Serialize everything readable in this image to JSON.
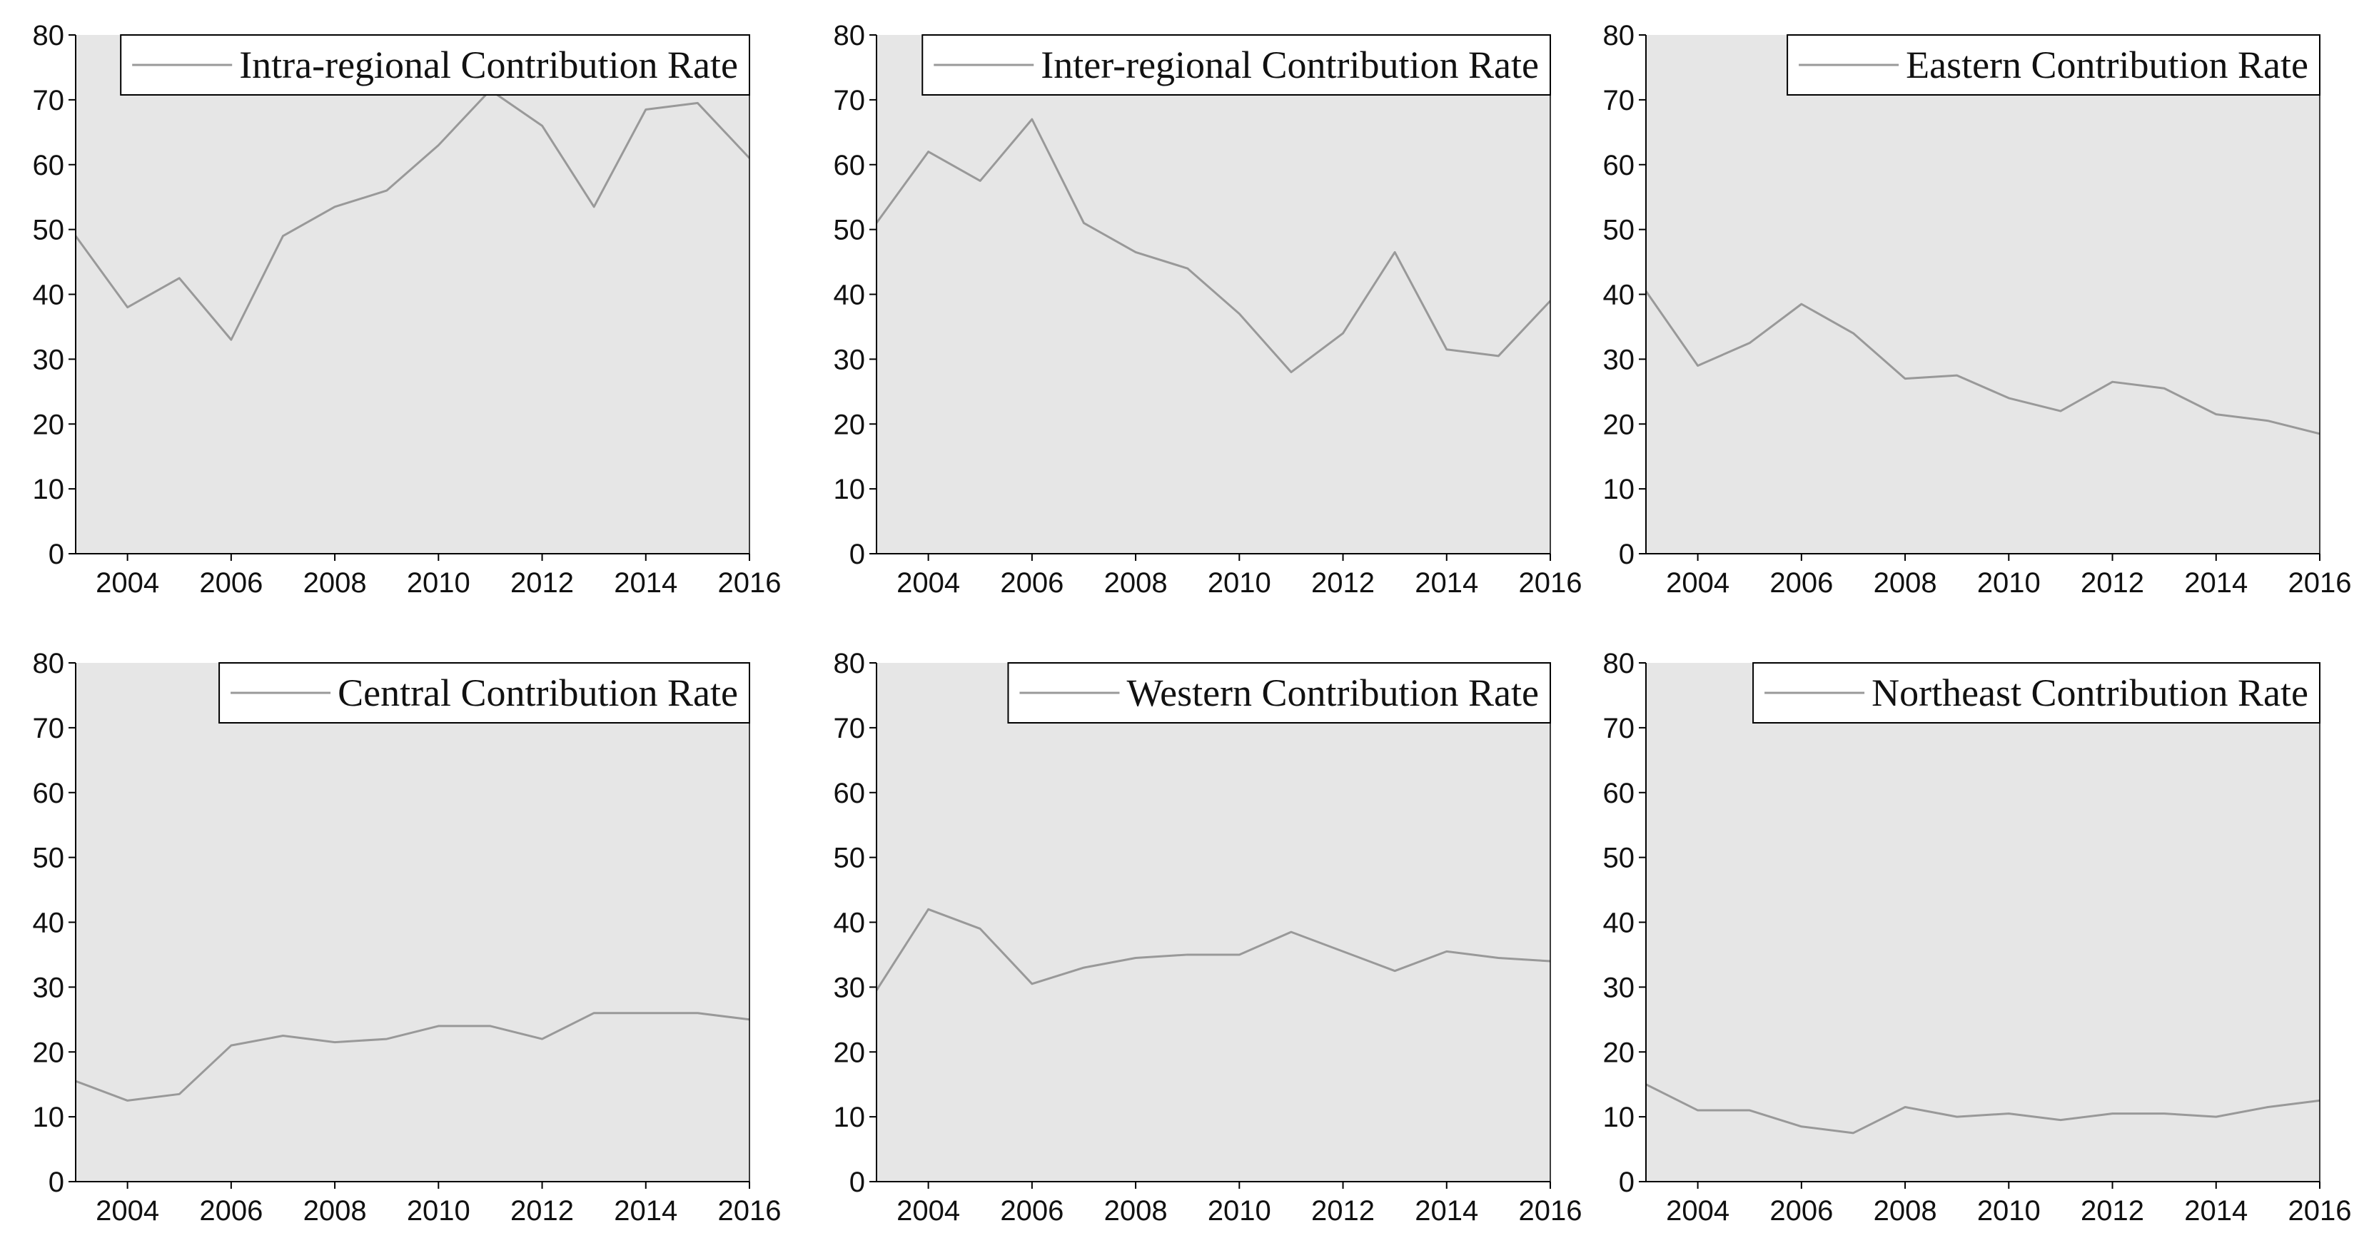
{
  "chart_data": [
    {
      "type": "line",
      "x": [
        2003,
        2004,
        2005,
        2006,
        2007,
        2008,
        2009,
        2010,
        2011,
        2012,
        2013,
        2014,
        2015,
        2016
      ],
      "series": [
        {
          "name": "Intra-regional Contribution Rate",
          "color": "#999999",
          "values": [
            49,
            38,
            42.5,
            33,
            49,
            53.5,
            56,
            63,
            71.5,
            66,
            53.5,
            68.5,
            69.5,
            61
          ]
        }
      ],
      "xlim": [
        2003,
        2016
      ],
      "xticks": [
        2004,
        2006,
        2008,
        2010,
        2012,
        2014,
        2016
      ],
      "ylim": [
        0,
        80
      ],
      "yticks": [
        0,
        10,
        20,
        30,
        40,
        50,
        60,
        70,
        80
      ],
      "legend": "upper right",
      "background": "#e6e6e6"
    },
    {
      "type": "line",
      "x": [
        2003,
        2004,
        2005,
        2006,
        2007,
        2008,
        2009,
        2010,
        2011,
        2012,
        2013,
        2014,
        2015,
        2016
      ],
      "series": [
        {
          "name": "Inter-regional Contribution Rate",
          "color": "#999999",
          "values": [
            51,
            62,
            57.5,
            67,
            51,
            46.5,
            44,
            37,
            28,
            34,
            46.5,
            31.5,
            30.5,
            39
          ]
        }
      ],
      "xlim": [
        2003,
        2016
      ],
      "xticks": [
        2004,
        2006,
        2008,
        2010,
        2012,
        2014,
        2016
      ],
      "ylim": [
        0,
        80
      ],
      "yticks": [
        0,
        10,
        20,
        30,
        40,
        50,
        60,
        70,
        80
      ],
      "legend": "upper right",
      "background": "#e6e6e6"
    },
    {
      "type": "line",
      "x": [
        2003,
        2004,
        2005,
        2006,
        2007,
        2008,
        2009,
        2010,
        2011,
        2012,
        2013,
        2014,
        2015,
        2016
      ],
      "series": [
        {
          "name": "Eastern Contribution Rate",
          "color": "#999999",
          "values": [
            40.5,
            29,
            32.5,
            38.5,
            34,
            27,
            27.5,
            24,
            22,
            26.5,
            25.5,
            21.5,
            20.5,
            18.5
          ]
        }
      ],
      "xlim": [
        2003,
        2016
      ],
      "xticks": [
        2004,
        2006,
        2008,
        2010,
        2012,
        2014,
        2016
      ],
      "ylim": [
        0,
        80
      ],
      "yticks": [
        0,
        10,
        20,
        30,
        40,
        50,
        60,
        70,
        80
      ],
      "legend": "upper right",
      "background": "#e6e6e6"
    },
    {
      "type": "line",
      "x": [
        2003,
        2004,
        2005,
        2006,
        2007,
        2008,
        2009,
        2010,
        2011,
        2012,
        2013,
        2014,
        2015,
        2016
      ],
      "series": [
        {
          "name": "Central Contribution Rate",
          "color": "#999999",
          "values": [
            15.5,
            12.5,
            13.5,
            21,
            22.5,
            21.5,
            22,
            24,
            24,
            22,
            26,
            26,
            26,
            25
          ]
        }
      ],
      "xlim": [
        2003,
        2016
      ],
      "xticks": [
        2004,
        2006,
        2008,
        2010,
        2012,
        2014,
        2016
      ],
      "ylim": [
        0,
        80
      ],
      "yticks": [
        0,
        10,
        20,
        30,
        40,
        50,
        60,
        70,
        80
      ],
      "legend": "upper right",
      "background": "#e6e6e6"
    },
    {
      "type": "line",
      "x": [
        2003,
        2004,
        2005,
        2006,
        2007,
        2008,
        2009,
        2010,
        2011,
        2012,
        2013,
        2014,
        2015,
        2016
      ],
      "series": [
        {
          "name": "Western Contribution Rate",
          "color": "#999999",
          "values": [
            29.5,
            42,
            39,
            30.5,
            33,
            34.5,
            35,
            35,
            38.5,
            35.5,
            32.5,
            35.5,
            34.5,
            34
          ]
        }
      ],
      "xlim": [
        2003,
        2016
      ],
      "xticks": [
        2004,
        2006,
        2008,
        2010,
        2012,
        2014,
        2016
      ],
      "ylim": [
        0,
        80
      ],
      "yticks": [
        0,
        10,
        20,
        30,
        40,
        50,
        60,
        70,
        80
      ],
      "legend": "upper right",
      "background": "#e6e6e6"
    },
    {
      "type": "line",
      "x": [
        2003,
        2004,
        2005,
        2006,
        2007,
        2008,
        2009,
        2010,
        2011,
        2012,
        2013,
        2014,
        2015,
        2016
      ],
      "series": [
        {
          "name": "Northeast Contribution Rate",
          "color": "#999999",
          "values": [
            15,
            11,
            11,
            8.5,
            7.5,
            11.5,
            10,
            10.5,
            9.5,
            10.5,
            10.5,
            10,
            11.5,
            12.5
          ]
        }
      ],
      "xlim": [
        2003,
        2016
      ],
      "xticks": [
        2004,
        2006,
        2008,
        2010,
        2012,
        2014,
        2016
      ],
      "ylim": [
        0,
        80
      ],
      "yticks": [
        0,
        10,
        20,
        30,
        40,
        50,
        60,
        70,
        80
      ],
      "legend": "upper right",
      "background": "#e6e6e6"
    }
  ]
}
